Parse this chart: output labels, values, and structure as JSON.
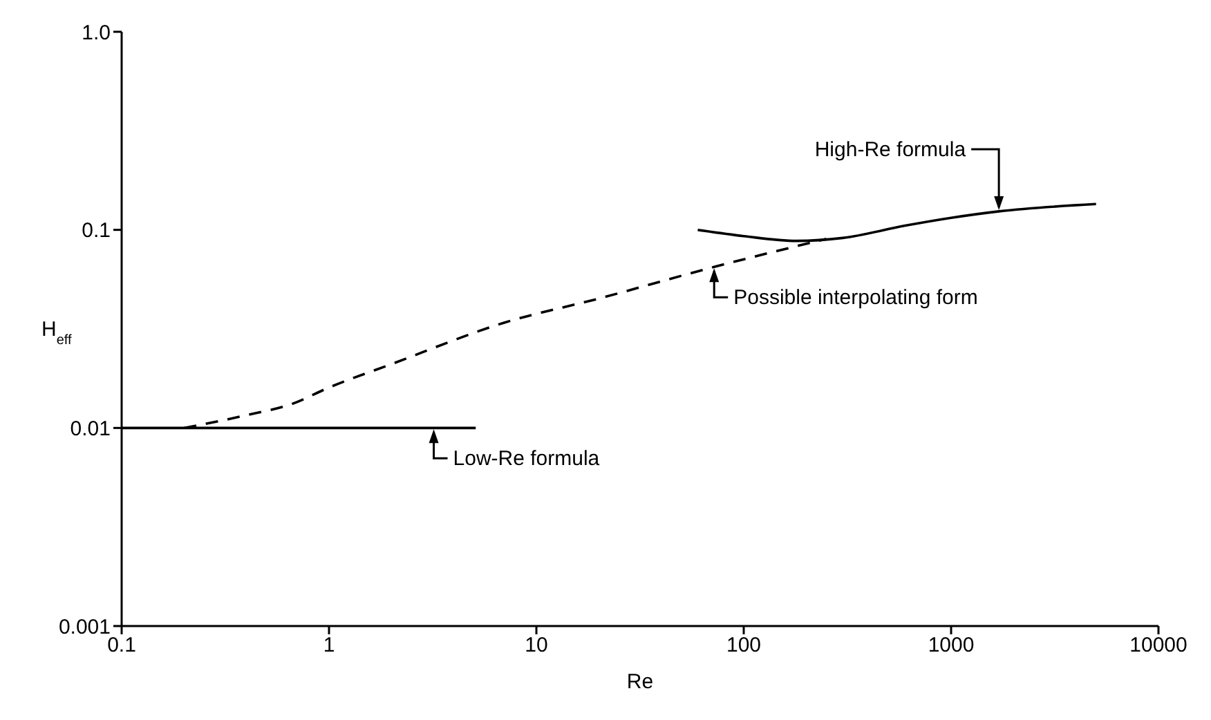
{
  "chart_data": {
    "type": "line",
    "xlabel": "Re",
    "ylabel": "H$_{eff}$",
    "log": "xy",
    "marker": "none",
    "xlim": [
      0.1,
      10000
    ],
    "xticks": [
      0.1,
      1,
      10,
      100,
      1000,
      10000
    ],
    "ylim": [
      0.001,
      1
    ],
    "yticks": [
      0.001,
      0.01,
      0.1,
      {
        "value": 1,
        "label": "1.0"
      }
    ],
    "series": [
      {
        "color": "#000000",
        "line_style": "solid",
        "x": [
          0.1,
          5.1
        ],
        "values": [
          0.01,
          0.01
        ]
      },
      {
        "color": "#000000",
        "line_style": "solid",
        "x": [
          60,
          100,
          180,
          300,
          600,
          1000,
          1700,
          5000
        ],
        "values": [
          0.1,
          0.093,
          0.088,
          0.091,
          0.105,
          0.115,
          0.124,
          0.135
        ]
      },
      {
        "color": "#000000",
        "line_style": "dashed",
        "x": [
          0.2,
          0.4,
          0.66,
          1,
          2,
          7,
          20,
          72,
          250
        ],
        "values": [
          0.01,
          0.0116,
          0.0132,
          0.016,
          0.021,
          0.034,
          0.045,
          0.065,
          0.09
        ]
      }
    ],
    "annotations": [
      {
        "text": "Low-Re formula",
        "x": 3.2,
        "y": 0.01
      },
      {
        "text": "Possible interpolating form",
        "x": 72,
        "y": 0.065
      },
      {
        "text": "High-Re formula",
        "x": 1700,
        "y": 0.124
      }
    ]
  }
}
